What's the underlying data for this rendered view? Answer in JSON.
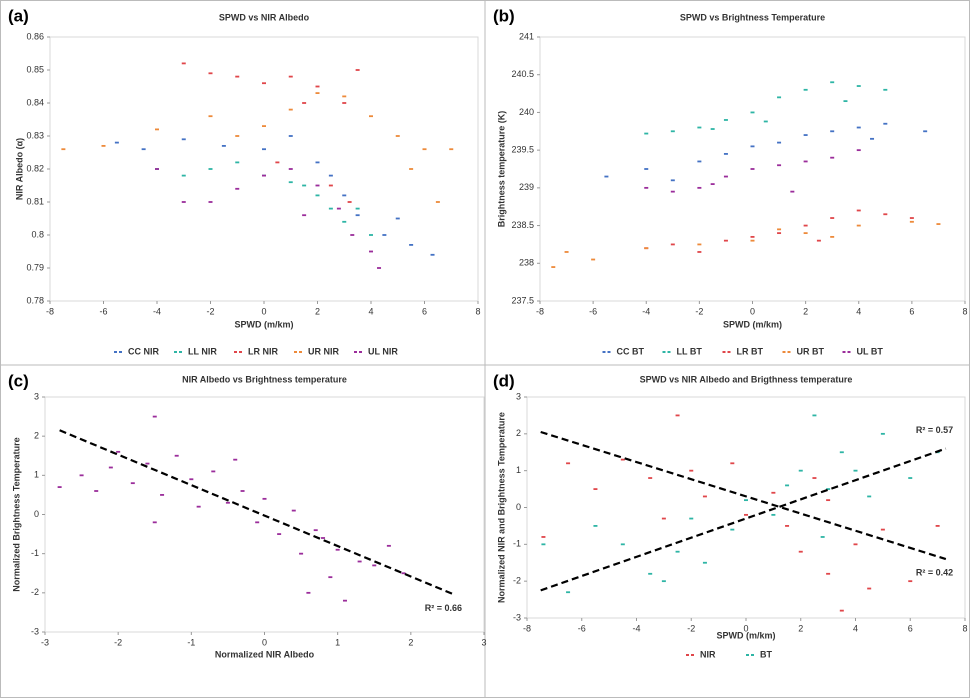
{
  "chart_data": [
    {
      "type": "scatter",
      "label": "(a)",
      "title": "SPWD vs NIR Albedo",
      "x_label": "SPWD (m/km)",
      "y_label": "NIR Albedo (α)",
      "xlim": [
        -8,
        8
      ],
      "xticks": [
        -8,
        -6,
        -4,
        -2,
        0,
        2,
        4,
        6,
        8
      ],
      "ylim": [
        0.78,
        0.86
      ],
      "yticks": [
        0.78,
        0.79,
        0.8,
        0.81,
        0.82,
        0.83,
        0.84,
        0.85,
        0.86
      ],
      "legend": "bottom",
      "series": [
        {
          "name": "CC NIR",
          "color": "#4472c4",
          "x": [
            -5.5,
            -4.5,
            -3,
            -1.5,
            0,
            1,
            2,
            3,
            3.5,
            4.5,
            5.5,
            6.3,
            5,
            2.5
          ],
          "y": [
            0.828,
            0.826,
            0.829,
            0.827,
            0.826,
            0.83,
            0.822,
            0.812,
            0.806,
            0.8,
            0.797,
            0.794,
            0.805,
            0.818
          ]
        },
        {
          "name": "LL NIR",
          "color": "#2eb5a5",
          "x": [
            -4,
            -3,
            -2,
            -1,
            0,
            1,
            2,
            2.5,
            3,
            3.5,
            4,
            1.5
          ],
          "y": [
            0.82,
            0.818,
            0.82,
            0.822,
            0.818,
            0.816,
            0.812,
            0.808,
            0.804,
            0.808,
            0.8,
            0.815
          ]
        },
        {
          "name": "LR NIR",
          "color": "#e0464a",
          "x": [
            -3,
            -2,
            -1,
            0,
            1,
            2,
            3,
            3.5,
            1.5,
            0.5,
            2.5,
            3.2
          ],
          "y": [
            0.852,
            0.849,
            0.848,
            0.846,
            0.848,
            0.845,
            0.84,
            0.85,
            0.84,
            0.822,
            0.815,
            0.81
          ]
        },
        {
          "name": "UR NIR",
          "color": "#ed8a3a",
          "x": [
            -7.5,
            -6,
            -4,
            -2,
            0,
            1,
            2,
            3,
            4,
            5,
            6,
            7,
            6.5,
            5.5,
            -1
          ],
          "y": [
            0.826,
            0.827,
            0.832,
            0.836,
            0.833,
            0.838,
            0.843,
            0.842,
            0.836,
            0.83,
            0.826,
            0.826,
            0.81,
            0.82,
            0.83
          ]
        },
        {
          "name": "UL NIR",
          "color": "#9b2d9b",
          "x": [
            -4,
            -3,
            -2,
            -1,
            0,
            1,
            2,
            2.8,
            3.3,
            4,
            4.3,
            1.5
          ],
          "y": [
            0.82,
            0.81,
            0.81,
            0.814,
            0.818,
            0.82,
            0.815,
            0.808,
            0.8,
            0.795,
            0.79,
            0.806
          ]
        }
      ]
    },
    {
      "type": "scatter",
      "label": "(b)",
      "title": "SPWD vs Brightness Temperature",
      "x_label": "SPWD (m/km)",
      "y_label": "Brightness temperature (K)",
      "xlim": [
        -8,
        8
      ],
      "xticks": [
        -8,
        -6,
        -4,
        -2,
        0,
        2,
        4,
        6,
        8
      ],
      "ylim": [
        237.5,
        241
      ],
      "yticks": [
        237.5,
        238,
        238.5,
        239,
        239.5,
        240,
        240.5,
        241
      ],
      "legend": "bottom",
      "series": [
        {
          "name": "CC BT",
          "color": "#4472c4",
          "x": [
            -5.5,
            -4,
            -2,
            -1,
            0,
            1,
            2,
            3,
            4,
            5,
            6.5,
            4.5,
            -3
          ],
          "y": [
            239.15,
            239.25,
            239.35,
            239.45,
            239.55,
            239.6,
            239.7,
            239.75,
            239.8,
            239.85,
            239.75,
            239.65,
            239.1
          ]
        },
        {
          "name": "LL BT",
          "color": "#2eb5a5",
          "x": [
            -4,
            -3,
            -2,
            -1,
            0,
            1,
            2,
            3,
            4,
            5,
            -1.5,
            0.5,
            3.5
          ],
          "y": [
            239.72,
            239.75,
            239.8,
            239.9,
            240.0,
            240.2,
            240.3,
            240.4,
            240.35,
            240.3,
            239.78,
            239.88,
            240.15
          ]
        },
        {
          "name": "LR BT",
          "color": "#e0464a",
          "x": [
            -4,
            -3,
            -1,
            0,
            1,
            2,
            3,
            4,
            5,
            6,
            -2,
            2.5
          ],
          "y": [
            238.2,
            238.25,
            238.3,
            238.35,
            238.4,
            238.5,
            238.6,
            238.7,
            238.65,
            238.6,
            238.15,
            238.3
          ]
        },
        {
          "name": "UR BT",
          "color": "#ed8a3a",
          "x": [
            -7.5,
            -6,
            -4,
            -2,
            0,
            2,
            4,
            6,
            7,
            -7,
            1,
            3
          ],
          "y": [
            237.95,
            238.05,
            238.2,
            238.25,
            238.3,
            238.4,
            238.5,
            238.55,
            238.52,
            238.15,
            238.45,
            238.35
          ]
        },
        {
          "name": "UL BT",
          "color": "#9b2d9b",
          "x": [
            -4,
            -3,
            -2,
            -1,
            0,
            1,
            2,
            3,
            4,
            1.5,
            -1.5
          ],
          "y": [
            239.0,
            238.95,
            239.0,
            239.15,
            239.25,
            239.3,
            239.35,
            239.4,
            239.5,
            238.95,
            239.05
          ]
        }
      ]
    },
    {
      "type": "scatter",
      "label": "(c)",
      "title": "NIR Albedo vs Brightness temperature",
      "x_label": "Normalized  NIR Albedo",
      "y_label": "Normalized Brightness Temperature",
      "xlim": [
        -3,
        3
      ],
      "xticks": [
        -3,
        -2,
        -1,
        0,
        1,
        2,
        3
      ],
      "ylim": [
        -3,
        3
      ],
      "yticks": [
        -3,
        -2,
        -1,
        0,
        1,
        2,
        3
      ],
      "series": [
        {
          "color": "#9b2d9b",
          "x": [
            -2.8,
            -2.5,
            -2.3,
            -2.1,
            -2,
            -1.8,
            -1.6,
            -1.5,
            -1.4,
            -1.2,
            -1,
            -0.9,
            -0.7,
            -0.5,
            -0.3,
            -0.1,
            0,
            0.2,
            0.4,
            0.5,
            0.7,
            0.9,
            1,
            1.1,
            1.3,
            1.5,
            1.7,
            1.9,
            -1.5,
            0.6,
            0.8,
            -0.4
          ],
          "y": [
            0.7,
            1.0,
            0.6,
            1.2,
            1.6,
            0.8,
            1.3,
            2.5,
            0.5,
            1.5,
            0.9,
            0.2,
            1.1,
            0.3,
            0.6,
            -0.2,
            0.4,
            -0.5,
            0.1,
            -1.0,
            -0.4,
            -1.6,
            -0.9,
            -2.2,
            -1.2,
            -1.3,
            -0.8,
            -1.5,
            -0.2,
            -2.0,
            -0.6,
            1.4
          ]
        }
      ],
      "trendlines": [
        {
          "x": [
            -2.8,
            2.6
          ],
          "y": [
            2.15,
            -2.05
          ],
          "label": "R² = 0.66"
        }
      ]
    },
    {
      "type": "scatter",
      "label": "(d)",
      "title": "SPWD vs NIR Albedo and Brigthness temperature",
      "x_label": "SPWD (m/km)",
      "y_label": "Normalized NIR and Brightness Temperature",
      "xlim": [
        -8,
        8
      ],
      "xticks": [
        -8,
        -6,
        -4,
        -2,
        0,
        2,
        4,
        6,
        8
      ],
      "ylim": [
        -3,
        3
      ],
      "yticks": [
        -3,
        -2,
        -1,
        0,
        1,
        2,
        3
      ],
      "legend": "bottom",
      "series": [
        {
          "name": "NIR",
          "color": "#e0464a",
          "x": [
            -7.4,
            -6.5,
            -5.5,
            -4.5,
            -3.5,
            -2.5,
            -2,
            -1.5,
            -0.5,
            0,
            1,
            1.5,
            2,
            2.5,
            3,
            3.5,
            4,
            4.5,
            5,
            6,
            7,
            3,
            -3
          ],
          "y": [
            -0.8,
            1.2,
            0.5,
            1.3,
            0.8,
            2.5,
            1.0,
            0.3,
            1.2,
            -0.2,
            0.4,
            -0.5,
            -1.2,
            0.8,
            -1.8,
            -2.8,
            -1.0,
            -2.2,
            -0.6,
            -2.0,
            -0.5,
            0.2,
            -0.3
          ]
        },
        {
          "name": "BT",
          "color": "#2eb5a5",
          "x": [
            -7.4,
            -6.5,
            -5.5,
            -4.5,
            -3.5,
            -2.5,
            -2,
            -1.5,
            -0.5,
            0,
            1,
            1.5,
            2,
            2.5,
            3,
            3.5,
            4,
            4.5,
            5,
            6,
            7,
            -3,
            2.8
          ],
          "y": [
            -1.0,
            -2.3,
            -0.5,
            -1.0,
            -1.8,
            -1.2,
            -0.3,
            -1.5,
            -0.6,
            0.2,
            -0.2,
            0.6,
            1.0,
            2.5,
            0.5,
            1.5,
            1.0,
            0.3,
            2.0,
            0.8,
            1.5,
            -2.0,
            -0.8
          ]
        }
      ],
      "trendlines": [
        {
          "x": [
            -7.5,
            7.3
          ],
          "y": [
            2.05,
            -1.4
          ],
          "label": "R² = 0.42"
        },
        {
          "x": [
            -7.5,
            7.3
          ],
          "y": [
            -2.25,
            1.6
          ],
          "label": "R² = 0.57"
        }
      ]
    }
  ]
}
